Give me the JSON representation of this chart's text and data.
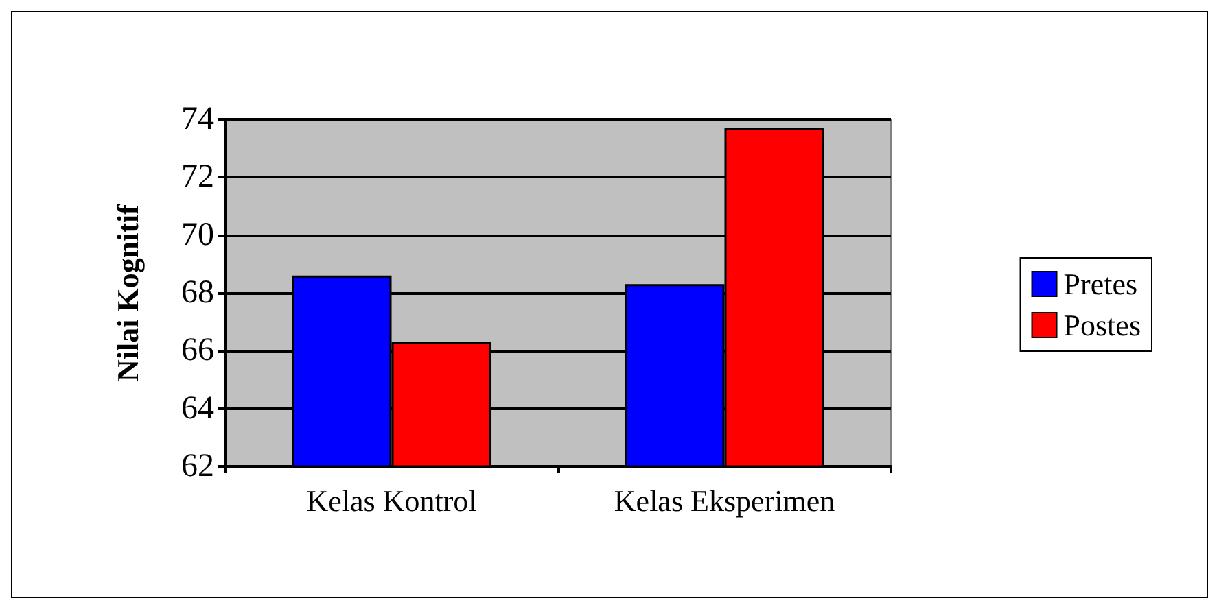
{
  "chart_data": {
    "type": "bar",
    "ylabel": "Nilai Kognitif",
    "categories": [
      "Kelas Kontrol",
      "Kelas Eksperimen"
    ],
    "series": [
      {
        "name": "Pretes",
        "color": "#0000ff",
        "values": [
          68.6,
          68.3
        ]
      },
      {
        "name": "Postes",
        "color": "#ff0000",
        "values": [
          66.3,
          73.7
        ]
      }
    ],
    "ylim": [
      62,
      74
    ],
    "yticks": [
      62,
      64,
      66,
      68,
      70,
      72,
      74
    ],
    "grid": "y",
    "legend": "right"
  }
}
